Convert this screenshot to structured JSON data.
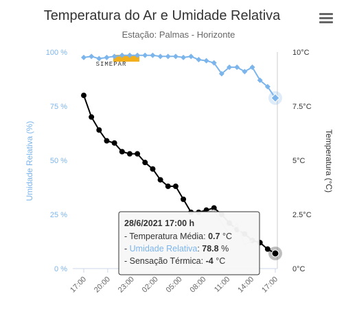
{
  "chart_data": {
    "type": "line",
    "title": "Temperatura do Ar e Umidade Relativa",
    "subtitle": "Estação: Palmas - Horizonte",
    "x_labels": [
      "17:00",
      "20:00",
      "23:00",
      "02:00",
      "05:00",
      "08:00",
      "11:00",
      "14:00",
      "17:00"
    ],
    "y_left": {
      "title": "Umidade Relativa (%)",
      "ticks": [
        "100 %",
        "75 %",
        "50 %",
        "25 %",
        "0 %"
      ],
      "range": [
        0,
        100
      ]
    },
    "y_right": {
      "title": "Temperatura (°C)",
      "ticks": [
        "10°C",
        "7.5°C",
        "5°C",
        "2.5°C",
        "0°C"
      ],
      "range": [
        0,
        10
      ]
    },
    "grid": false,
    "series": [
      {
        "name": "Umidade Relativa",
        "color": "#7cb5ec",
        "marker": "diamond",
        "axis": "left",
        "values": [
          97.5,
          98,
          97,
          97.5,
          98,
          98.5,
          98.5,
          98.5,
          98.5,
          98.5,
          98,
          98,
          98,
          97.5,
          98,
          96.5,
          96,
          95,
          90,
          93,
          93,
          91,
          93,
          87,
          84,
          78.8
        ]
      },
      {
        "name": "Temperatura Média",
        "color": "#000000",
        "marker": "circle",
        "axis": "right",
        "values": [
          8,
          7,
          6.4,
          5.9,
          5.8,
          5.4,
          5.3,
          5.3,
          4.9,
          4.6,
          4.1,
          3.8,
          3.8,
          3.2,
          2.6,
          2.6,
          2.7,
          2.8,
          2.5,
          2.1,
          1.8,
          1.6,
          1.3,
          1.2,
          0.9,
          0.7
        ]
      },
      {
        "name": "Sensação Térmica",
        "color": "#cccccc",
        "marker": "none",
        "axis": "right",
        "values": [
          null,
          null,
          null,
          null,
          null,
          null,
          null,
          null,
          null,
          null,
          null,
          null,
          null,
          null,
          null,
          2.6,
          2.6,
          2.7,
          2.1,
          1.6,
          2.1,
          1.1,
          1.3,
          null,
          null,
          null
        ]
      }
    ]
  },
  "logo_text": "SIMEPAR",
  "tooltip": {
    "header": "28/6/2021 17:00 h",
    "prefix": "- ",
    "rows": [
      {
        "label": "Temperatura Média",
        "value": "0.7",
        "unit": " °C",
        "color": "#333333"
      },
      {
        "label": "Umidade Relativa",
        "value": "78.8",
        "unit": " %",
        "color": "#7cb5ec"
      },
      {
        "label": "Sensação Térmica",
        "value": "-4",
        "unit": " °C",
        "color": "#333333"
      }
    ]
  }
}
